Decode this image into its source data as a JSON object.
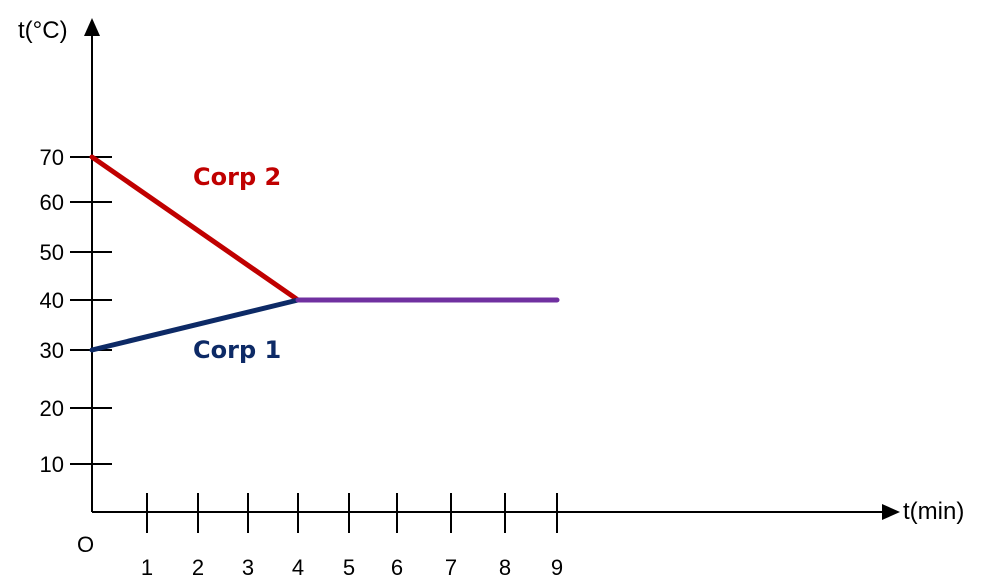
{
  "chart_data": {
    "type": "line",
    "xlabel": "t(min)",
    "ylabel": "t(°C)",
    "origin_label": "O",
    "x_ticks": [
      1,
      2,
      3,
      4,
      5,
      6,
      7,
      8,
      9
    ],
    "y_ticks": [
      10,
      20,
      30,
      40,
      50,
      60,
      70
    ],
    "series": [
      {
        "name": "Corp 2",
        "color": "#c00000",
        "points": [
          [
            0,
            70
          ],
          [
            4,
            40
          ]
        ]
      },
      {
        "name": "Corp 1",
        "color": "#0d2a66",
        "points": [
          [
            0,
            30
          ],
          [
            4,
            40
          ]
        ]
      },
      {
        "name": "",
        "color": "#7030a0",
        "points": [
          [
            4,
            40
          ],
          [
            9,
            40
          ]
        ]
      }
    ]
  }
}
